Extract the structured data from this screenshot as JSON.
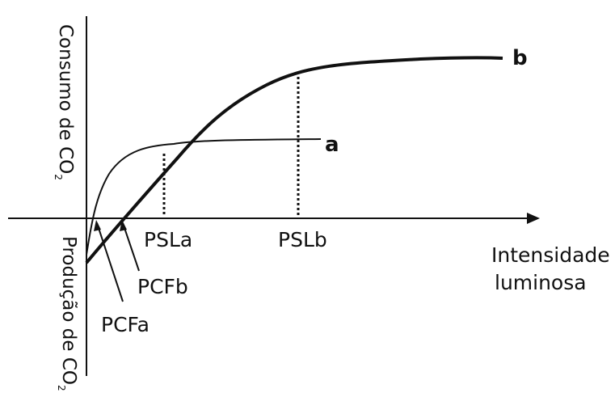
{
  "axes": {
    "y_positive_label": "Consumo de CO",
    "y_negative_label": "Produção de CO",
    "subscript": "2",
    "x_label_line1": "Intensidade",
    "x_label_line2": "luminosa"
  },
  "curves": {
    "a": {
      "label": "a"
    },
    "b": {
      "label": "b"
    }
  },
  "points": {
    "psla": "PSLa",
    "pslb": "PSLb",
    "pcfa": "PCFa",
    "pcfb": "PCFb"
  },
  "colors": {
    "ink": "#111111"
  }
}
